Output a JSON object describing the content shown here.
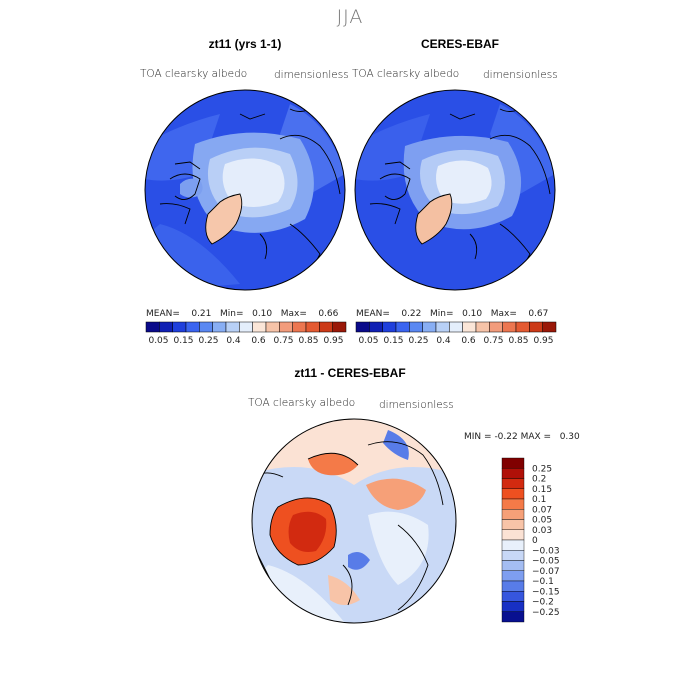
{
  "figure": {
    "season": "JJA"
  },
  "panels": [
    {
      "title": "zt11 (yrs 1-1)",
      "variable": "TOA clearsky albedo",
      "units": "dimensionless",
      "stats": {
        "mean_label": "MEAN=",
        "mean": "0.21",
        "min_label": "Min=",
        "min": "0.10",
        "max_label": "Max=",
        "max": "0.66"
      }
    },
    {
      "title": "CERES-EBAF",
      "variable": "TOA clearsky albedo",
      "units": "dimensionless",
      "stats": {
        "mean_label": "MEAN=",
        "mean": "0.22",
        "min_label": "Min=",
        "min": "0.10",
        "max_label": "Max=",
        "max": "0.67"
      }
    }
  ],
  "top_colorbar": {
    "labels": [
      "0.05",
      "0.15",
      "0.25",
      "0.4",
      "0.6",
      "0.75",
      "0.85",
      "0.95"
    ],
    "colors": [
      "#0a0a8a",
      "#1020b4",
      "#1f3fdc",
      "#3a64f0",
      "#5a88f2",
      "#88aef4",
      "#b8d0f6",
      "#e4eefb",
      "#fbe6d8",
      "#f6c3a8",
      "#f29c7c",
      "#ec7650",
      "#e45a32",
      "#cc3a18",
      "#9a1808"
    ]
  },
  "diff_panel": {
    "title": "zt11 - CERES-EBAF",
    "variable": "TOA clearsky albedo",
    "units": "dimensionless",
    "stats": {
      "min_label": "MIN =",
      "min": "-0.22",
      "max_label": "MAX =",
      "max": "0.30"
    }
  },
  "diff_colorbar": {
    "labels": [
      "0.25",
      "0.2",
      "0.15",
      "0.1",
      "0.07",
      "0.05",
      "0.03",
      "0",
      "−0.03",
      "−0.05",
      "−0.07",
      "−0.1",
      "−0.15",
      "−0.2",
      "−0.25"
    ],
    "colors": [
      "#800000",
      "#b01008",
      "#d22a10",
      "#ee5020",
      "#f47a48",
      "#f6a078",
      "#f8c4a8",
      "#fbe2d4",
      "#e8f0fb",
      "#c8d8f6",
      "#a4bdf2",
      "#7e9ef0",
      "#587ce8",
      "#3656de",
      "#1830c4",
      "#081090"
    ]
  }
}
